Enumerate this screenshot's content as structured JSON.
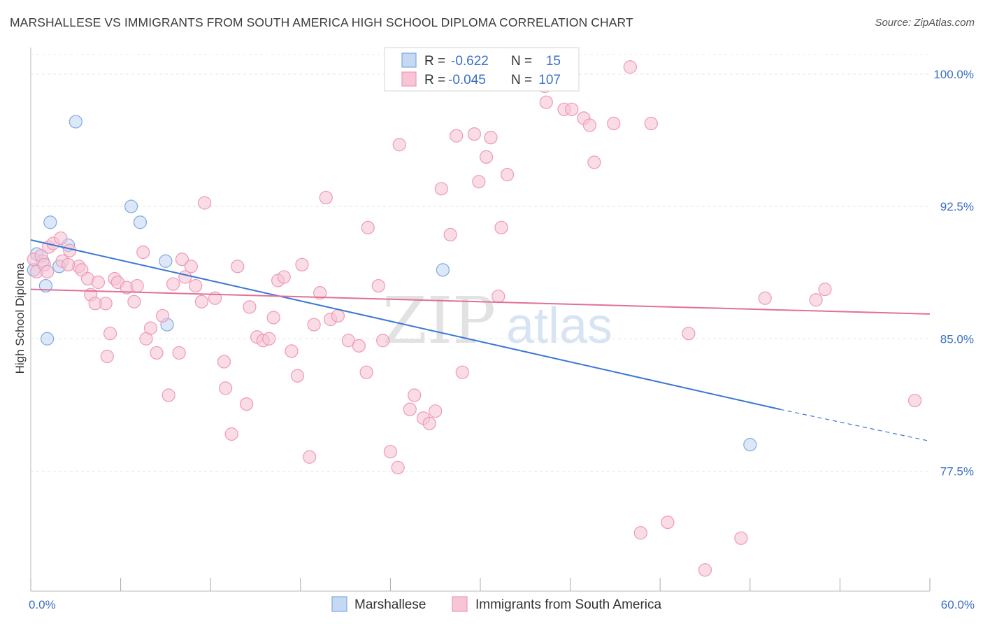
{
  "title": "MARSHALLESE VS IMMIGRANTS FROM SOUTH AMERICA HIGH SCHOOL DIPLOMA CORRELATION CHART",
  "source": "Source: ZipAtlas.com",
  "watermark": {
    "zip": "ZIP",
    "atlas": "atlas"
  },
  "legend": [
    {
      "r_label": "R =",
      "r_value": "-0.622",
      "n_label": "N =",
      "n_value": "15"
    },
    {
      "r_label": "R =",
      "r_value": "-0.045",
      "n_label": "N =",
      "n_value": "107"
    }
  ],
  "bottom_legend": [
    "Marshallese",
    "Immigrants from South America"
  ],
  "chart_data": {
    "type": "scatter",
    "title": "MARSHALLESE VS IMMIGRANTS FROM SOUTH AMERICA HIGH SCHOOL DIPLOMA CORRELATION CHART",
    "xlabel": "",
    "ylabel": "High School Diploma",
    "xlim": [
      0,
      60
    ],
    "ylim": [
      70.7,
      101.5
    ],
    "x_tick_labels": [
      "0.0%",
      "60.0%"
    ],
    "y_ticks": [
      77.5,
      85.0,
      92.5,
      100.0
    ],
    "y_tick_labels": [
      "77.5%",
      "85.0%",
      "92.5%",
      "100.0%"
    ],
    "grid": true,
    "legend_position": "top-center",
    "series": [
      {
        "name": "Marshallese",
        "color": "#7ea9e0",
        "fill": "#c5d9f4",
        "trend": {
          "x": [
            0,
            50
          ],
          "y": [
            90.6,
            81.0
          ],
          "dashed_to": [
            60,
            79.2
          ],
          "color": "#3a78d4"
        },
        "points": [
          [
            0.2,
            88.9
          ],
          [
            0.4,
            89.8
          ],
          [
            0.8,
            89.4
          ],
          [
            1.0,
            88.0
          ],
          [
            1.1,
            85.0
          ],
          [
            1.3,
            91.6
          ],
          [
            2.5,
            90.3
          ],
          [
            1.9,
            89.1
          ],
          [
            3.0,
            97.3
          ],
          [
            6.7,
            92.5
          ],
          [
            7.3,
            91.6
          ],
          [
            9.0,
            89.4
          ],
          [
            9.1,
            85.8
          ],
          [
            27.5,
            88.9
          ],
          [
            48.0,
            79.0
          ]
        ]
      },
      {
        "name": "Immigrants from South America",
        "color": "#ee99b5",
        "fill": "#f7c5d5",
        "trend": {
          "x": [
            0,
            60
          ],
          "y": [
            87.8,
            86.4
          ],
          "color": "#e0709a"
        },
        "points": [
          [
            0.2,
            89.5
          ],
          [
            0.4,
            88.8
          ],
          [
            0.7,
            89.7
          ],
          [
            0.9,
            89.2
          ],
          [
            1.1,
            88.8
          ],
          [
            1.2,
            90.2
          ],
          [
            1.5,
            90.4
          ],
          [
            2.0,
            90.7
          ],
          [
            2.1,
            89.4
          ],
          [
            2.6,
            90.0
          ],
          [
            3.2,
            89.1
          ],
          [
            3.4,
            88.9
          ],
          [
            3.8,
            88.4
          ],
          [
            2.5,
            89.2
          ],
          [
            4.0,
            87.5
          ],
          [
            4.5,
            88.2
          ],
          [
            5.0,
            87.0
          ],
          [
            5.6,
            88.4
          ],
          [
            5.8,
            88.2
          ],
          [
            6.4,
            87.9
          ],
          [
            6.9,
            87.1
          ],
          [
            7.1,
            88.0
          ],
          [
            4.3,
            87.0
          ],
          [
            5.3,
            85.3
          ],
          [
            5.1,
            84.0
          ],
          [
            7.7,
            85.0
          ],
          [
            8.0,
            85.6
          ],
          [
            8.4,
            84.2
          ],
          [
            8.8,
            86.3
          ],
          [
            9.2,
            81.8
          ],
          [
            9.5,
            88.1
          ],
          [
            9.9,
            84.2
          ],
          [
            10.1,
            89.5
          ],
          [
            10.3,
            88.5
          ],
          [
            10.7,
            89.1
          ],
          [
            11.0,
            88.0
          ],
          [
            11.4,
            87.1
          ],
          [
            11.6,
            92.7
          ],
          [
            12.3,
            87.3
          ],
          [
            12.9,
            83.7
          ],
          [
            13.4,
            79.6
          ],
          [
            13.8,
            89.1
          ],
          [
            14.4,
            81.3
          ],
          [
            14.6,
            86.8
          ],
          [
            15.1,
            85.1
          ],
          [
            15.5,
            84.9
          ],
          [
            15.9,
            85.0
          ],
          [
            16.2,
            86.2
          ],
          [
            16.5,
            88.3
          ],
          [
            16.9,
            88.5
          ],
          [
            17.4,
            84.3
          ],
          [
            17.8,
            82.9
          ],
          [
            18.1,
            89.2
          ],
          [
            18.6,
            78.3
          ],
          [
            18.9,
            85.8
          ],
          [
            19.3,
            87.6
          ],
          [
            19.7,
            93.0
          ],
          [
            20.0,
            86.1
          ],
          [
            20.5,
            86.3
          ],
          [
            7.5,
            89.9
          ],
          [
            13.0,
            82.2
          ],
          [
            21.2,
            84.9
          ],
          [
            21.9,
            84.6
          ],
          [
            22.4,
            83.1
          ],
          [
            22.5,
            91.3
          ],
          [
            23.2,
            88.0
          ],
          [
            23.5,
            84.9
          ],
          [
            24.0,
            78.6
          ],
          [
            24.6,
            96.0
          ],
          [
            25.3,
            81.0
          ],
          [
            25.6,
            81.8
          ],
          [
            26.2,
            80.5
          ],
          [
            26.6,
            80.2
          ],
          [
            27.0,
            80.9
          ],
          [
            27.4,
            93.5
          ],
          [
            28.0,
            90.9
          ],
          [
            28.4,
            96.5
          ],
          [
            28.8,
            83.1
          ],
          [
            29.6,
            96.6
          ],
          [
            29.9,
            93.9
          ],
          [
            30.4,
            95.3
          ],
          [
            30.7,
            96.4
          ],
          [
            31.2,
            87.4
          ],
          [
            31.4,
            91.3
          ],
          [
            31.8,
            94.3
          ],
          [
            32.6,
            100.0
          ],
          [
            33.0,
            99.6
          ],
          [
            34.3,
            99.3
          ],
          [
            34.4,
            98.4
          ],
          [
            35.6,
            98.0
          ],
          [
            36.1,
            98.0
          ],
          [
            36.9,
            97.5
          ],
          [
            37.3,
            97.1
          ],
          [
            37.6,
            95.0
          ],
          [
            38.9,
            97.2
          ],
          [
            40.0,
            100.4
          ],
          [
            41.4,
            97.2
          ],
          [
            42.5,
            74.6
          ],
          [
            45.0,
            71.9
          ],
          [
            40.7,
            74.0
          ],
          [
            43.9,
            85.3
          ],
          [
            47.4,
            73.7
          ],
          [
            49.0,
            87.3
          ],
          [
            52.4,
            87.2
          ],
          [
            53.0,
            87.8
          ],
          [
            59.0,
            81.5
          ],
          [
            24.5,
            77.7
          ]
        ]
      }
    ]
  }
}
